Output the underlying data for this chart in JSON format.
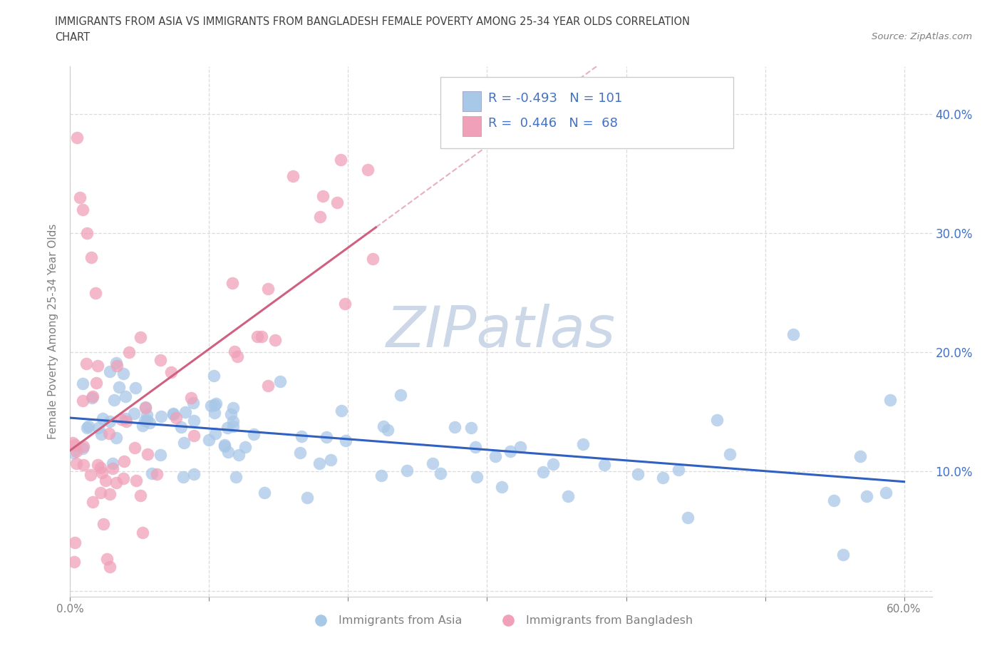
{
  "title_line1": "IMMIGRANTS FROM ASIA VS IMMIGRANTS FROM BANGLADESH FEMALE POVERTY AMONG 25-34 YEAR OLDS CORRELATION",
  "title_line2": "CHART",
  "source_text": "Source: ZipAtlas.com",
  "ylabel": "Female Poverty Among 25-34 Year Olds",
  "xlim": [
    0.0,
    0.62
  ],
  "ylim": [
    -0.005,
    0.44
  ],
  "yticks": [
    0.0,
    0.1,
    0.2,
    0.3,
    0.4
  ],
  "yticklabels_right": [
    "",
    "10.0%",
    "20.0%",
    "30.0%",
    "40.0%"
  ],
  "xtick_vals": [
    0.0,
    0.1,
    0.2,
    0.3,
    0.4,
    0.5,
    0.6
  ],
  "xticklabels": [
    "0.0%",
    "",
    "",
    "",
    "",
    "",
    "60.0%"
  ],
  "legend_r_blue": "-0.493",
  "legend_n_blue": "101",
  "legend_r_pink": "0.446",
  "legend_n_pink": "68",
  "blue_color": "#a8c8e8",
  "pink_color": "#f0a0b8",
  "blue_line_color": "#3060c0",
  "pink_line_color": "#d06080",
  "legend_label_blue": "Immigrants from Asia",
  "legend_label_pink": "Immigrants from Bangladesh",
  "background_color": "#ffffff",
  "grid_color": "#d8d8d8",
  "title_color": "#404040",
  "axis_color": "#808080",
  "right_axis_color": "#4472c4",
  "watermark_color": "#ccd8e8"
}
